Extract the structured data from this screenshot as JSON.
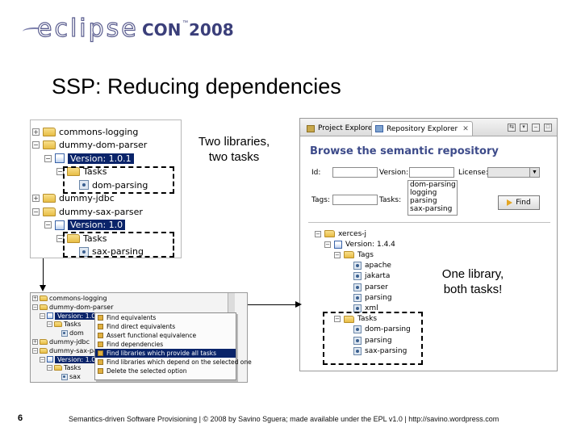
{
  "logo": {
    "ecl": "eclipse",
    "con": "CON",
    "tm": "™",
    "year": "2008"
  },
  "title": "SSP: Reducing dependencies",
  "tree1": {
    "rows": [
      {
        "pm": "+",
        "icon": "folder",
        "label": "commons-logging"
      },
      {
        "pm": "−",
        "icon": "folder",
        "label": "dummy-dom-parser"
      },
      {
        "pm": "−",
        "icon": "doc",
        "label": "Version: 1.0.1",
        "selected": true
      },
      {
        "pm": "−",
        "icon": "folder",
        "label": "Tasks"
      },
      {
        "pm": "",
        "icon": "leaf",
        "label": "dom-parsing"
      },
      {
        "pm": "+",
        "icon": "folder",
        "label": "dummy-jdbc"
      },
      {
        "pm": "−",
        "icon": "folder",
        "label": "dummy-sax-parser"
      },
      {
        "pm": "−",
        "icon": "doc",
        "label": "Version: 1.0",
        "selected": true
      },
      {
        "pm": "−",
        "icon": "folder",
        "label": "Tasks"
      },
      {
        "pm": "",
        "icon": "leaf",
        "label": "sax-parsing"
      }
    ]
  },
  "callouts": {
    "two_libraries": "Two libraries,",
    "two_tasks": "two tasks",
    "one_library": "One library,",
    "both_tasks": "both tasks!"
  },
  "repo": {
    "tabs": {
      "project_explorer": "Project Explorer",
      "repository_explorer": "Repository Explorer",
      "close": "✕"
    },
    "heading": "Browse the semantic repository",
    "labels": {
      "id": "Id:",
      "version": "Version:",
      "license": "License:",
      "tags": "Tags:",
      "tasks": "Tasks:"
    },
    "tag_options": [
      "dom-parsing",
      "logging",
      "parsing",
      "sax-parsing"
    ],
    "find_label": "Find",
    "tree": [
      {
        "pm": "−",
        "icon": "folder",
        "label": "xerces-j"
      },
      {
        "pm": "−",
        "icon": "doc",
        "label": "Version: 1.4.4"
      },
      {
        "pm": "−",
        "icon": "folder",
        "label": "Tags"
      },
      {
        "pm": "",
        "icon": "leaf",
        "label": "apache"
      },
      {
        "pm": "",
        "icon": "leaf",
        "label": "jakarta"
      },
      {
        "pm": "",
        "icon": "leaf",
        "label": "parser"
      },
      {
        "pm": "",
        "icon": "leaf",
        "label": "parsing"
      },
      {
        "pm": "",
        "icon": "leaf",
        "label": "xml"
      },
      {
        "pm": "−",
        "icon": "folder",
        "label": "Tasks"
      },
      {
        "pm": "",
        "icon": "leaf",
        "label": "dom-parsing"
      },
      {
        "pm": "",
        "icon": "leaf",
        "label": "parsing"
      },
      {
        "pm": "",
        "icon": "leaf",
        "label": "sax-parsing"
      }
    ]
  },
  "ctx": {
    "tree": [
      {
        "pm": "+",
        "icon": "folder",
        "label": "commons-logging"
      },
      {
        "pm": "−",
        "icon": "folder",
        "label": "dummy-dom-parser"
      },
      {
        "pm": "−",
        "icon": "doc",
        "label": "Version: 1.0",
        "selected": true
      },
      {
        "pm": "−",
        "icon": "folder",
        "label": "Tasks"
      },
      {
        "pm": "",
        "icon": "leaf",
        "label": "dom"
      },
      {
        "pm": "+",
        "icon": "folder",
        "label": "dummy-jdbc"
      },
      {
        "pm": "−",
        "icon": "folder",
        "label": "dummy-sax-parser"
      },
      {
        "pm": "−",
        "icon": "doc",
        "label": "Version: 1.0",
        "selected": true
      },
      {
        "pm": "−",
        "icon": "folder",
        "label": "Tasks"
      },
      {
        "pm": "",
        "icon": "leaf",
        "label": "sax"
      }
    ],
    "menu": [
      "Find equivalents",
      "Find direct equivalents",
      "Assert functional equivalence",
      "Find dependencies",
      "Find libraries which provide all tasks",
      "Find libraries which depend on the selected one",
      "Delete the selected option"
    ],
    "highlight_index": 4
  },
  "page_number": "6",
  "footer": "Semantics-driven Software Provisioning | © 2008 by Savino Sguera; made available under the EPL v1.0 | http://savino.wordpress.com"
}
